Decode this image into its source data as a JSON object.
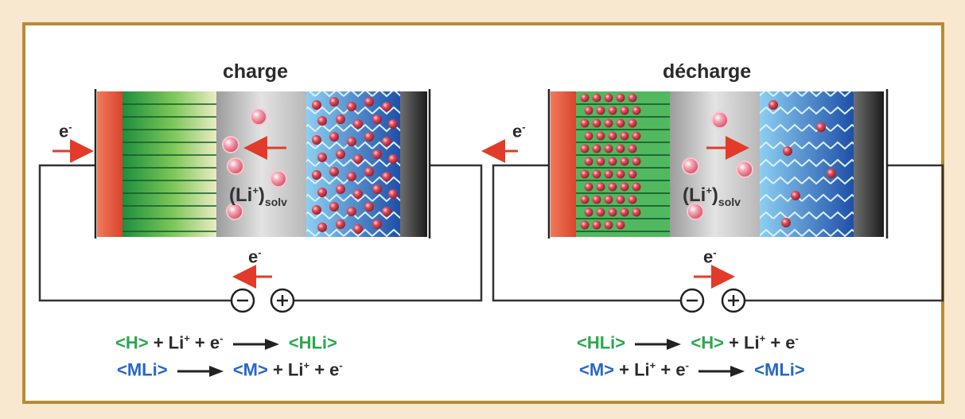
{
  "panels": [
    {
      "title": "charge",
      "electron_label": "e",
      "electron_sup": "-",
      "ion_label": "(Li",
      "ion_sup": "+",
      "ion_close": ")",
      "ion_sub": "solv",
      "equation1": {
        "a": "<H>",
        "b": " + Li",
        "c": "+",
        "d": " + e",
        "e": "-",
        "f": "<HLi>"
      },
      "equation2": {
        "a": "<MLi>",
        "b": "<M>",
        "c": " + Li",
        "d": "+",
        "e": " + e",
        "f": "-"
      }
    },
    {
      "title": "décharge",
      "electron_label": "e",
      "electron_sup": "-",
      "ion_label": "(Li",
      "ion_sup": "+",
      "ion_close": ")",
      "ion_sub": "solv",
      "equation1": {
        "a": "<HLi>",
        "b": "<H>",
        "c": " + Li",
        "d": "+",
        "e": " + e",
        "f": "-"
      },
      "equation2": {
        "a": "<M>",
        "b": " + Li",
        "c": "+",
        "d": " + e",
        "e": "-",
        "f": "<MLi>"
      }
    }
  ],
  "terminals": {
    "negative": "−",
    "positive": "+"
  },
  "colors": {
    "frame": "#b98a36",
    "background": "#f7e8cf",
    "arrow": "#e23b2a",
    "green": "#2aa84f",
    "blue": "#2667c8"
  }
}
